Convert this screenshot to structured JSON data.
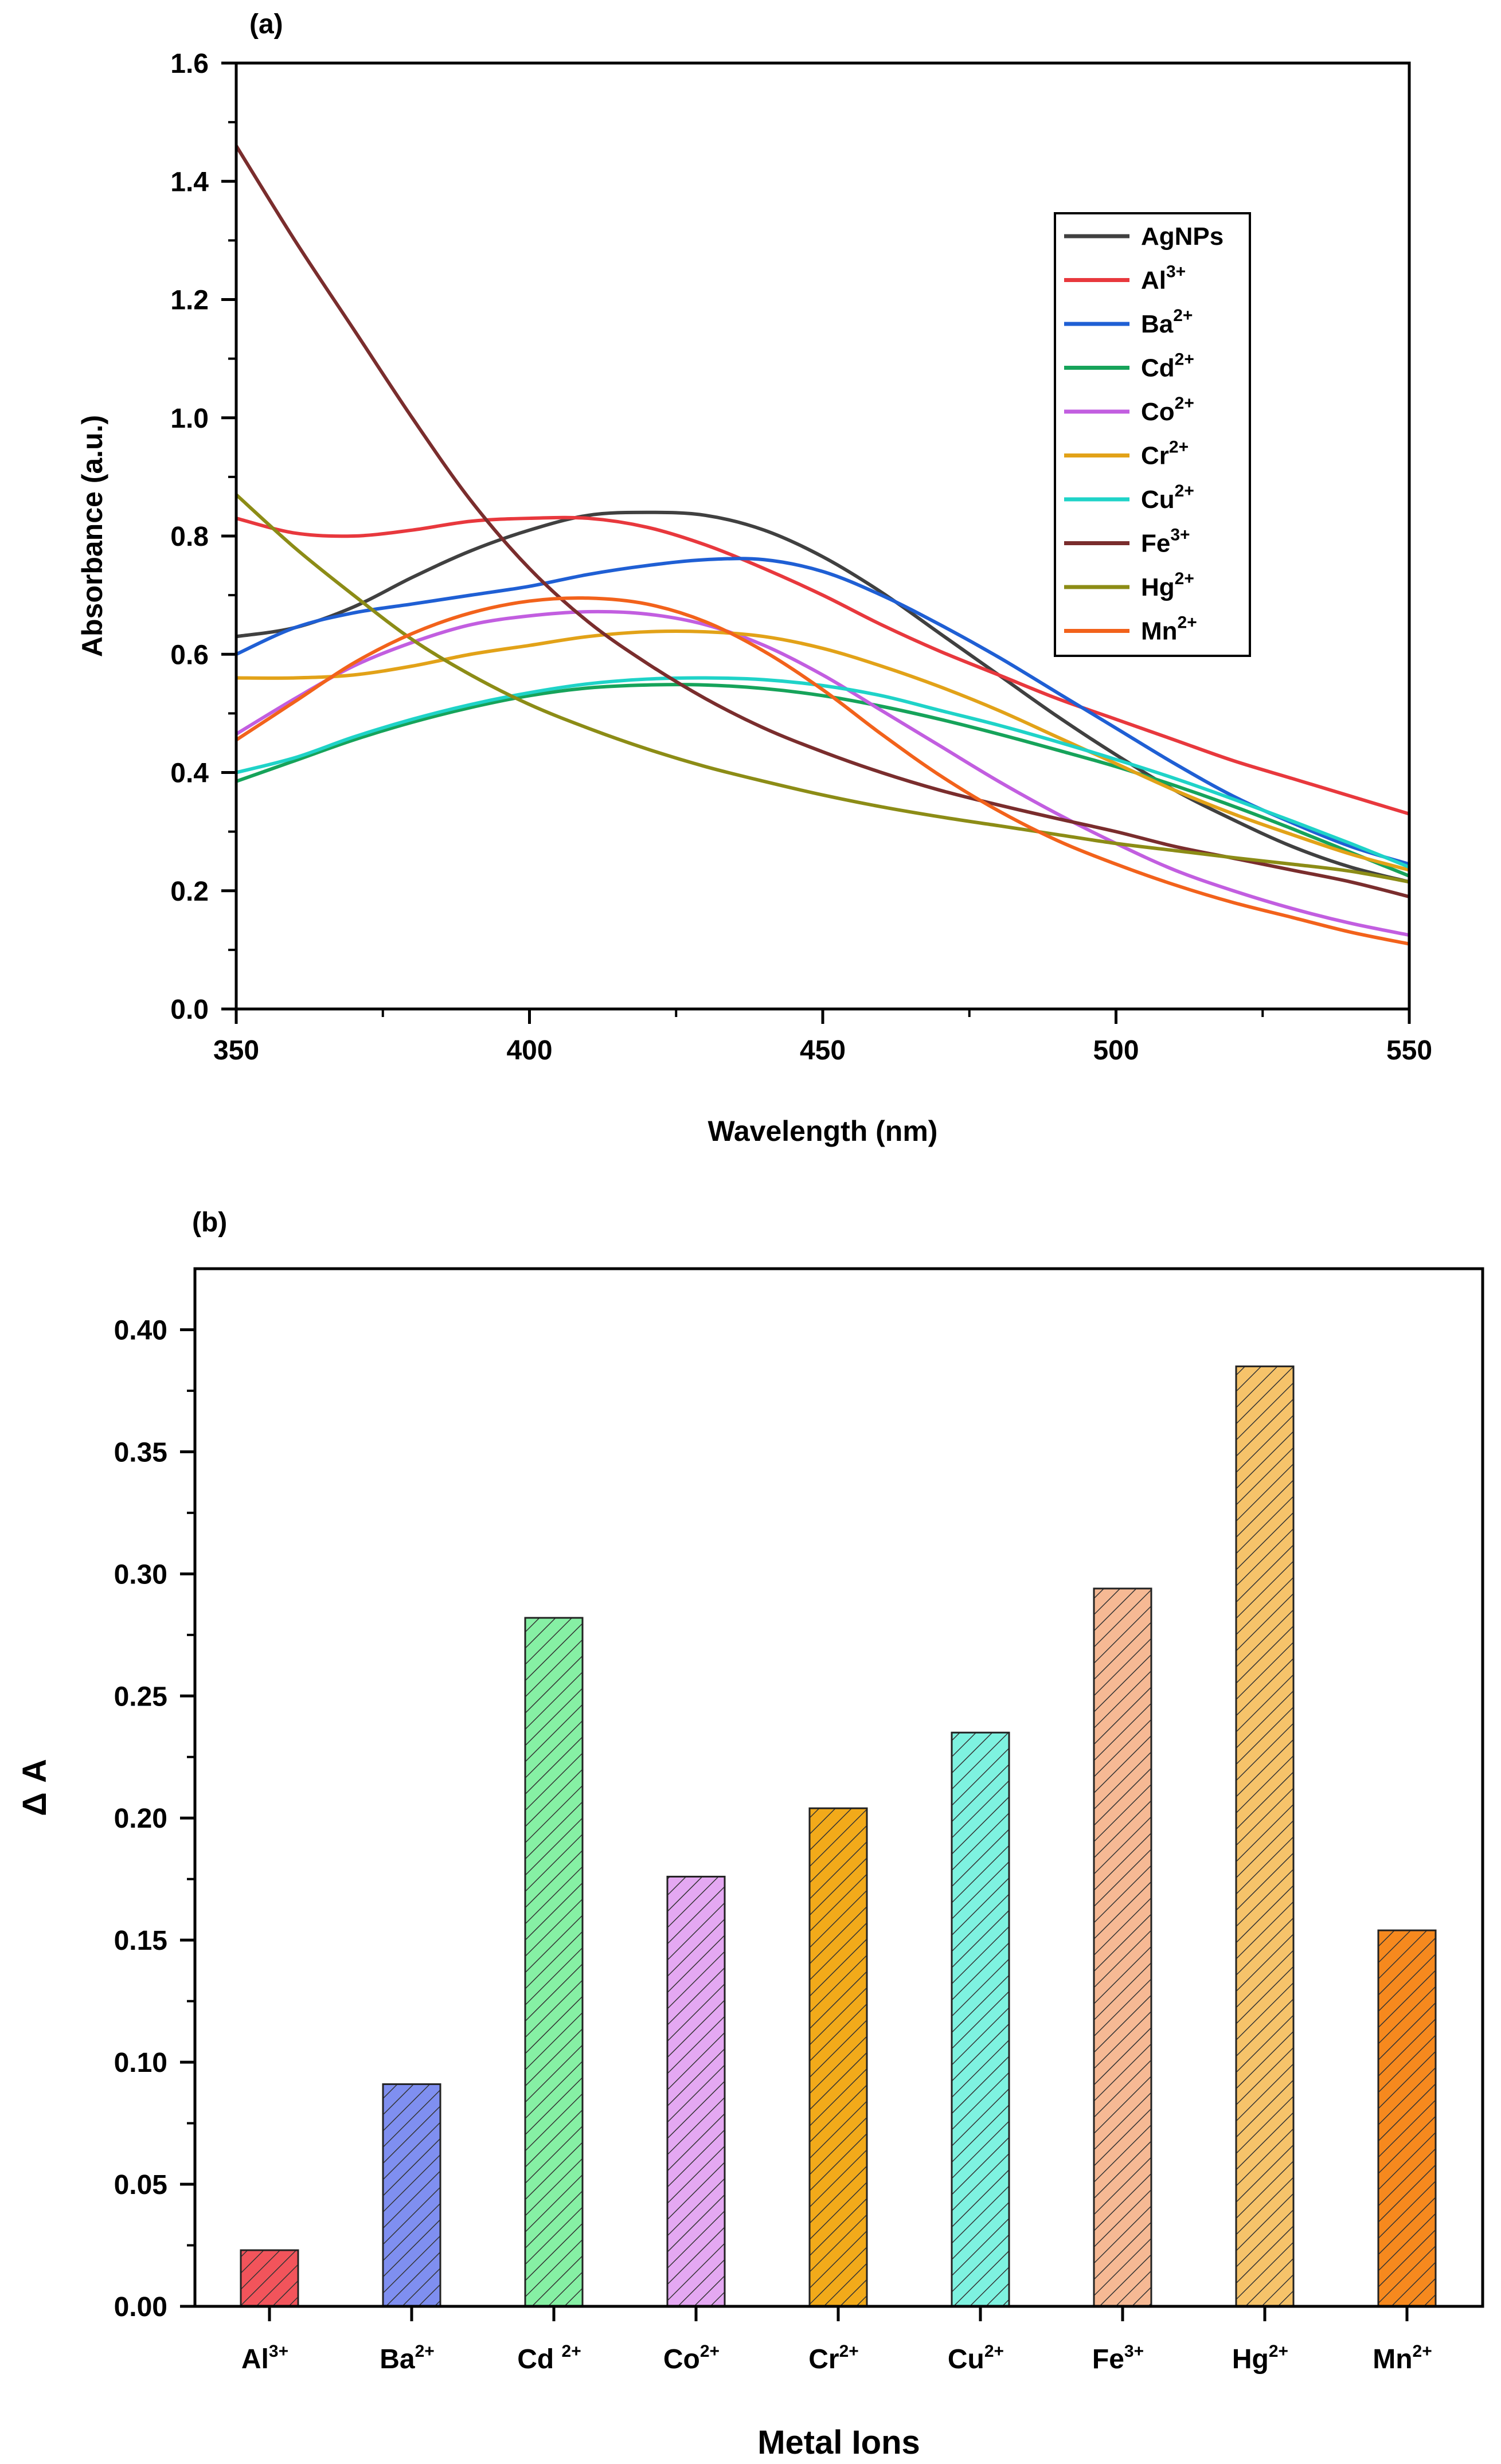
{
  "chart_data": [
    {
      "type": "line",
      "panel_label": "(a)",
      "title": "",
      "xlabel": "Wavelength (nm)",
      "ylabel": "Absorbance (a.u.)",
      "xlim": [
        350,
        550
      ],
      "ylim": [
        0.0,
        1.6
      ],
      "x_ticks": [
        "350",
        "400",
        "450",
        "500",
        "550"
      ],
      "y_ticks": [
        "0.0",
        "0.2",
        "0.4",
        "0.6",
        "0.8",
        "1.0",
        "1.2",
        "1.4",
        "1.6"
      ],
      "legend_position": "upper-right",
      "x": [
        350,
        360,
        370,
        380,
        390,
        400,
        410,
        420,
        430,
        440,
        450,
        460,
        470,
        480,
        490,
        500,
        510,
        520,
        530,
        540,
        550
      ],
      "series": [
        {
          "name": "AgNPs",
          "sup": "",
          "color": "#404040",
          "values": [
            0.63,
            0.645,
            0.68,
            0.73,
            0.775,
            0.81,
            0.835,
            0.84,
            0.835,
            0.81,
            0.765,
            0.705,
            0.635,
            0.565,
            0.495,
            0.43,
            0.37,
            0.32,
            0.275,
            0.24,
            0.215
          ]
        },
        {
          "name": "Al",
          "sup": "3+",
          "color": "#e8383d",
          "values": [
            0.83,
            0.805,
            0.8,
            0.81,
            0.825,
            0.83,
            0.83,
            0.815,
            0.785,
            0.745,
            0.7,
            0.65,
            0.605,
            0.565,
            0.525,
            0.49,
            0.455,
            0.42,
            0.39,
            0.36,
            0.33
          ]
        },
        {
          "name": "Ba",
          "sup": "2+",
          "color": "#1f5fd4",
          "values": [
            0.6,
            0.645,
            0.67,
            0.685,
            0.7,
            0.715,
            0.735,
            0.75,
            0.76,
            0.76,
            0.74,
            0.7,
            0.65,
            0.595,
            0.535,
            0.475,
            0.415,
            0.36,
            0.315,
            0.275,
            0.245
          ]
        },
        {
          "name": "Cd",
          "sup": "2+",
          "color": "#16a35a",
          "values": [
            0.385,
            0.42,
            0.455,
            0.485,
            0.51,
            0.53,
            0.543,
            0.548,
            0.548,
            0.542,
            0.53,
            0.512,
            0.49,
            0.465,
            0.438,
            0.41,
            0.378,
            0.343,
            0.305,
            0.265,
            0.225
          ]
        },
        {
          "name": "Co",
          "sup": "2+",
          "color": "#c25ee0",
          "values": [
            0.465,
            0.525,
            0.58,
            0.62,
            0.65,
            0.665,
            0.672,
            0.668,
            0.65,
            0.615,
            0.565,
            0.505,
            0.445,
            0.385,
            0.33,
            0.28,
            0.235,
            0.2,
            0.17,
            0.145,
            0.125
          ]
        },
        {
          "name": "Cr",
          "sup": "2+",
          "color": "#e2a218",
          "values": [
            0.56,
            0.56,
            0.565,
            0.58,
            0.6,
            0.615,
            0.63,
            0.638,
            0.638,
            0.63,
            0.61,
            0.58,
            0.545,
            0.505,
            0.46,
            0.415,
            0.37,
            0.33,
            0.295,
            0.262,
            0.235
          ]
        },
        {
          "name": "Cu",
          "sup": "2+",
          "color": "#1fd3c8",
          "values": [
            0.4,
            0.425,
            0.46,
            0.49,
            0.515,
            0.535,
            0.55,
            0.558,
            0.56,
            0.557,
            0.547,
            0.53,
            0.505,
            0.48,
            0.452,
            0.422,
            0.39,
            0.355,
            0.318,
            0.28,
            0.24
          ]
        },
        {
          "name": "Fe",
          "sup": "3+",
          "color": "#7a2d2d",
          "values": [
            1.46,
            1.3,
            1.15,
            1.0,
            0.86,
            0.745,
            0.655,
            0.585,
            0.525,
            0.475,
            0.435,
            0.4,
            0.37,
            0.345,
            0.322,
            0.3,
            0.275,
            0.255,
            0.235,
            0.215,
            0.19
          ]
        },
        {
          "name": "Hg",
          "sup": "2+",
          "color": "#8c8c16",
          "values": [
            0.87,
            0.78,
            0.7,
            0.625,
            0.565,
            0.515,
            0.475,
            0.44,
            0.41,
            0.385,
            0.362,
            0.342,
            0.325,
            0.31,
            0.295,
            0.28,
            0.268,
            0.256,
            0.245,
            0.233,
            0.215
          ]
        },
        {
          "name": "Mn",
          "sup": "2+",
          "color": "#f2621b",
          "values": [
            0.455,
            0.52,
            0.585,
            0.635,
            0.67,
            0.69,
            0.695,
            0.685,
            0.655,
            0.605,
            0.54,
            0.465,
            0.395,
            0.335,
            0.285,
            0.245,
            0.21,
            0.18,
            0.155,
            0.13,
            0.11
          ]
        }
      ]
    },
    {
      "type": "bar",
      "panel_label": "(b)",
      "title": "",
      "xlabel": "Metal Ions",
      "ylabel": "Δ A",
      "ylim": [
        0.0,
        0.425
      ],
      "y_ticks": [
        "0.00",
        "0.05",
        "0.10",
        "0.15",
        "0.20",
        "0.25",
        "0.30",
        "0.35",
        "0.40"
      ],
      "bar_pattern": "diagonal-hatch",
      "categories": [
        {
          "name": "Al",
          "sup": "3+"
        },
        {
          "name": "Ba",
          "sup": "2+"
        },
        {
          "name": "Cd ",
          "sup": "2+"
        },
        {
          "name": "Co",
          "sup": "2+"
        },
        {
          "name": "Cr",
          "sup": "2+"
        },
        {
          "name": "Cu",
          "sup": "2+"
        },
        {
          "name": "Fe",
          "sup": "3+"
        },
        {
          "name": "Hg",
          "sup": "2+"
        },
        {
          "name": "Mn",
          "sup": "2+"
        }
      ],
      "values": [
        0.023,
        0.091,
        0.282,
        0.176,
        0.204,
        0.235,
        0.294,
        0.385,
        0.154
      ],
      "colors": [
        "#f2545b",
        "#7f8ff0",
        "#86f0a4",
        "#e4a8f2",
        "#f2aa1a",
        "#7ef2e0",
        "#f6b994",
        "#f6c36a",
        "#f6891e"
      ]
    }
  ]
}
